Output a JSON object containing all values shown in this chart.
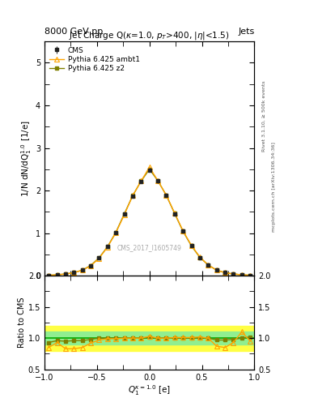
{
  "title_top_left": "8000 GeV pp",
  "title_top_right": "Jets",
  "plot_title": "Jet Charge Q($\\kappa$=1.0, $p_T$>400, |$\\eta$|<1.5)",
  "ylabel_main": "1/N dN/dQ$_1^{1.0}$ [1/e]",
  "ylabel_ratio": "Ratio to CMS",
  "xlabel": "$Q_1^{\\kappa=1.0}$ [e]",
  "right_label1": "Rivet 3.1.10, ≥ 500k events",
  "right_label2": "mcplots.cern.ch [arXiv:1306.34:36]",
  "watermark": "CMS_2017_I1605749",
  "cms_x": [
    -0.96,
    -0.88,
    -0.8,
    -0.72,
    -0.64,
    -0.56,
    -0.48,
    -0.4,
    -0.32,
    -0.24,
    -0.16,
    -0.08,
    0.0,
    0.08,
    0.16,
    0.24,
    0.32,
    0.4,
    0.48,
    0.56,
    0.64,
    0.72,
    0.8,
    0.88,
    0.96
  ],
  "cms_y": [
    0.01,
    0.02,
    0.04,
    0.07,
    0.13,
    0.24,
    0.42,
    0.68,
    1.02,
    1.44,
    1.87,
    2.21,
    2.48,
    2.22,
    1.88,
    1.45,
    1.04,
    0.7,
    0.43,
    0.25,
    0.13,
    0.07,
    0.04,
    0.02,
    0.01
  ],
  "cms_yerr": [
    0.003,
    0.004,
    0.005,
    0.007,
    0.009,
    0.013,
    0.017,
    0.023,
    0.029,
    0.035,
    0.039,
    0.043,
    0.045,
    0.043,
    0.039,
    0.035,
    0.029,
    0.023,
    0.017,
    0.013,
    0.009,
    0.007,
    0.005,
    0.004,
    0.003
  ],
  "ambt1_x": [
    -0.96,
    -0.88,
    -0.8,
    -0.72,
    -0.64,
    -0.56,
    -0.48,
    -0.4,
    -0.32,
    -0.24,
    -0.16,
    -0.08,
    0.0,
    0.08,
    0.16,
    0.24,
    0.32,
    0.4,
    0.48,
    0.56,
    0.64,
    0.72,
    0.8,
    0.88,
    0.96
  ],
  "ambt1_y": [
    0.01,
    0.02,
    0.04,
    0.07,
    0.13,
    0.23,
    0.41,
    0.67,
    1.01,
    1.43,
    1.88,
    2.22,
    2.55,
    2.23,
    1.89,
    1.47,
    1.05,
    0.71,
    0.44,
    0.25,
    0.13,
    0.07,
    0.04,
    0.02,
    0.01
  ],
  "z2_x": [
    -0.96,
    -0.88,
    -0.8,
    -0.72,
    -0.64,
    -0.56,
    -0.48,
    -0.4,
    -0.32,
    -0.24,
    -0.16,
    -0.08,
    0.0,
    0.08,
    0.16,
    0.24,
    0.32,
    0.4,
    0.48,
    0.56,
    0.64,
    0.72,
    0.8,
    0.88,
    0.96
  ],
  "z2_y": [
    0.01,
    0.02,
    0.04,
    0.07,
    0.13,
    0.24,
    0.42,
    0.68,
    1.02,
    1.45,
    1.88,
    2.22,
    2.5,
    2.23,
    1.89,
    1.46,
    1.04,
    0.7,
    0.43,
    0.25,
    0.13,
    0.07,
    0.04,
    0.02,
    0.01
  ],
  "ratio_ambt1_y": [
    0.85,
    0.93,
    0.83,
    0.83,
    0.85,
    0.92,
    0.97,
    0.99,
    0.99,
    1.0,
    1.0,
    1.0,
    1.03,
    1.0,
    1.0,
    1.01,
    1.01,
    1.01,
    1.02,
    1.0,
    0.87,
    0.85,
    0.93,
    1.1,
    0.95
  ],
  "ratio_z2_y": [
    0.93,
    0.96,
    0.95,
    0.96,
    0.96,
    0.98,
    1.0,
    1.0,
    1.0,
    1.0,
    1.0,
    1.0,
    1.01,
    1.0,
    1.0,
    1.0,
    1.0,
    1.0,
    1.0,
    1.0,
    0.97,
    0.97,
    0.98,
    1.0,
    1.02
  ],
  "ratio_band_yellow_lo": 0.8,
  "ratio_band_yellow_hi": 1.2,
  "ratio_band_green_lo": 0.9,
  "ratio_band_green_hi": 1.1,
  "cms_color": "#222222",
  "ambt1_color": "#FFA500",
  "z2_color": "#808000",
  "ylim_main": [
    0,
    5.5
  ],
  "ylim_ratio": [
    0.5,
    2.0
  ],
  "xlim": [
    -1.0,
    1.0
  ],
  "band_yellow": "#FFFF44",
  "band_green": "#90EE90"
}
